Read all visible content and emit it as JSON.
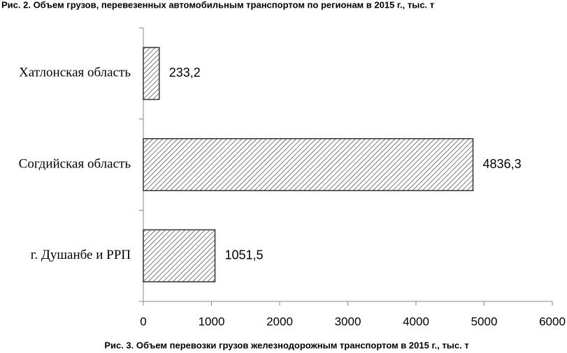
{
  "chart_data": {
    "type": "barh",
    "title": "Рис. 2. Объем грузов, перевезенных автомобильным транспортом по регионам в 2015 г., тыс. т",
    "caption": "Рис. 3. Объем перевозки грузов железнодорожным транспортом в 2015 г., тыс. т",
    "categories": [
      "Хатлонская область",
      "Согдийская область",
      "г. Душанбе и РРП"
    ],
    "values": [
      233.2,
      4836.3,
      1051.5
    ],
    "value_labels": [
      "233,2",
      "4836,3",
      "1051,5"
    ],
    "color": "#333333",
    "xlim": [
      0,
      6000
    ],
    "xticks": [
      0,
      1000,
      2000,
      3000,
      4000,
      5000,
      6000
    ],
    "grid": false
  }
}
